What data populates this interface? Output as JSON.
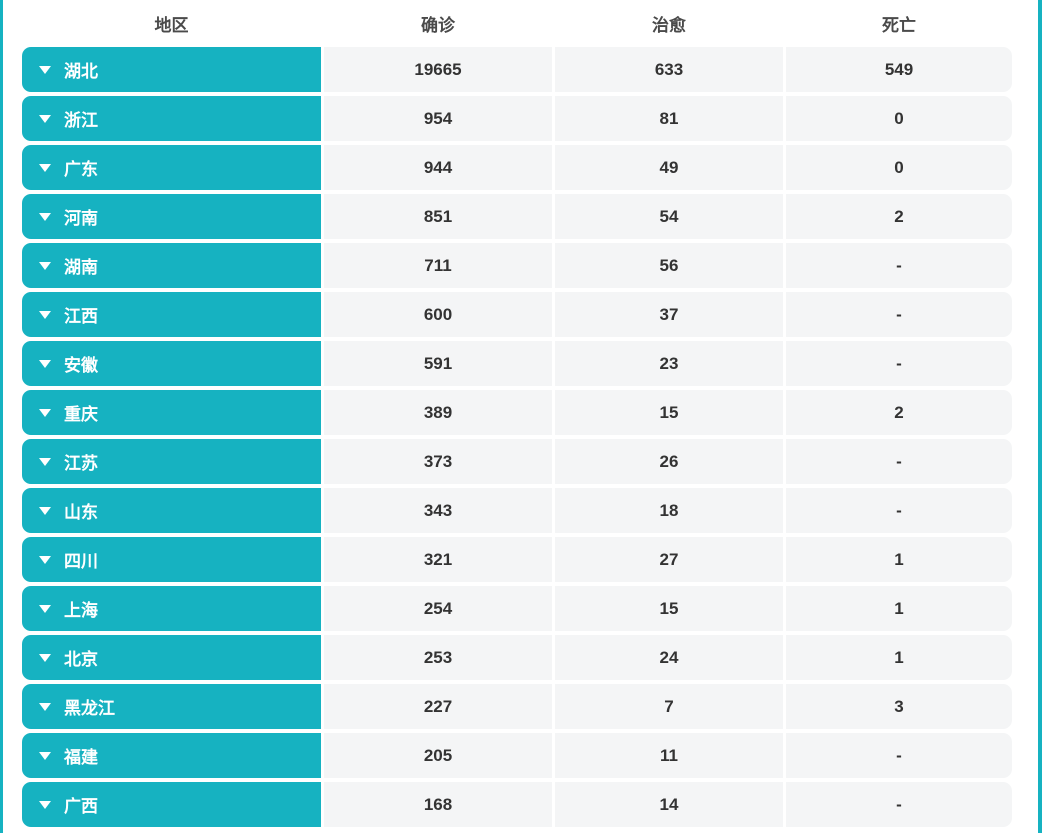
{
  "colors": {
    "accent": "#16b2c1",
    "cell_bg": "#f4f5f6",
    "number_text": "#333333",
    "header_text": "#4a4a4a",
    "region_text": "#ffffff"
  },
  "icons": {
    "region_expander": "caret-down-icon"
  },
  "table": {
    "columns": [
      {
        "key": "region",
        "label": "地区"
      },
      {
        "key": "confirmed",
        "label": "确诊"
      },
      {
        "key": "cured",
        "label": "治愈"
      },
      {
        "key": "deaths",
        "label": "死亡"
      }
    ],
    "rows": [
      {
        "region": "湖北",
        "confirmed": "19665",
        "cured": "633",
        "deaths": "549"
      },
      {
        "region": "浙江",
        "confirmed": "954",
        "cured": "81",
        "deaths": "0"
      },
      {
        "region": "广东",
        "confirmed": "944",
        "cured": "49",
        "deaths": "0"
      },
      {
        "region": "河南",
        "confirmed": "851",
        "cured": "54",
        "deaths": "2"
      },
      {
        "region": "湖南",
        "confirmed": "711",
        "cured": "56",
        "deaths": "-"
      },
      {
        "region": "江西",
        "confirmed": "600",
        "cured": "37",
        "deaths": "-"
      },
      {
        "region": "安徽",
        "confirmed": "591",
        "cured": "23",
        "deaths": "-"
      },
      {
        "region": "重庆",
        "confirmed": "389",
        "cured": "15",
        "deaths": "2"
      },
      {
        "region": "江苏",
        "confirmed": "373",
        "cured": "26",
        "deaths": "-"
      },
      {
        "region": "山东",
        "confirmed": "343",
        "cured": "18",
        "deaths": "-"
      },
      {
        "region": "四川",
        "confirmed": "321",
        "cured": "27",
        "deaths": "1"
      },
      {
        "region": "上海",
        "confirmed": "254",
        "cured": "15",
        "deaths": "1"
      },
      {
        "region": "北京",
        "confirmed": "253",
        "cured": "24",
        "deaths": "1"
      },
      {
        "region": "黑龙江",
        "confirmed": "227",
        "cured": "7",
        "deaths": "3"
      },
      {
        "region": "福建",
        "confirmed": "205",
        "cured": "11",
        "deaths": "-"
      },
      {
        "region": "广西",
        "confirmed": "168",
        "cured": "14",
        "deaths": "-"
      }
    ]
  }
}
